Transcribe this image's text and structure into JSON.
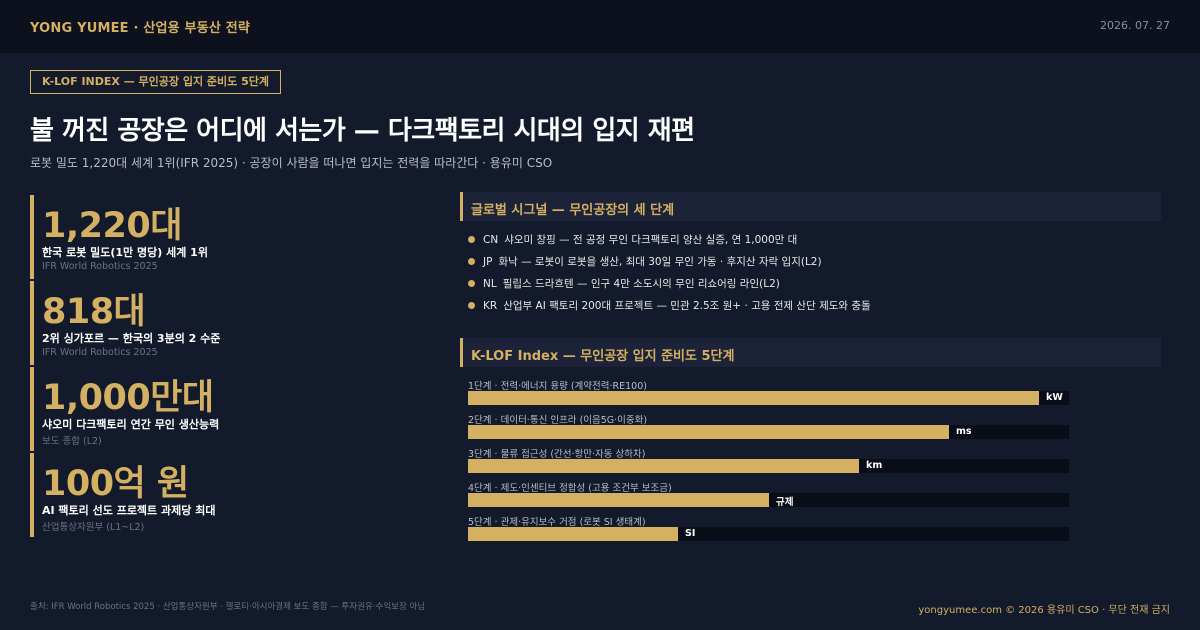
{
  "header": {
    "brand": "YONG YUMEE  ·  산업용 부동산 전략",
    "date": "2026. 07. 27"
  },
  "tag": "K-LOF INDEX — 무인공장 입지 준비도 5단계",
  "title": "불 꺼진 공장은 어디에 서는가 — 다크팩토리 시대의 입지 재편",
  "subtitle": "로봇 밀도 1,220대 세계 1위(IFR 2025) · 공장이 사람을 떠나면 입지는 전력을 따라간다 · 용유미 CSO",
  "stats": [
    {
      "value": "1,220대",
      "label": "한국 로봇 밀도(1만 명당) 세계 1위",
      "source": "IFR World Robotics 2025"
    },
    {
      "value": "818대",
      "label": "2위 싱가포르 — 한국의 3분의 2 수준",
      "source": "IFR World Robotics 2025"
    },
    {
      "value": "1,000만대",
      "label": "샤오미 다크팩토리 연간 무인 생산능력",
      "source": "보도 종합 (L2)"
    },
    {
      "value": "100억 원",
      "label": "AI 팩토리 선도 프로젝트 과제당 최대",
      "source": "산업통상자원부 (L1~L2)"
    }
  ],
  "signals_section": {
    "title": "글로벌 시그널 — 무인공장의 세 단계",
    "items": [
      {
        "code": "CN",
        "text": "샤오미 창핑 — 전 공정 무인 다크팩토리 양산 실증, 연 1,000만 대"
      },
      {
        "code": "JP",
        "text": "화낙 — 로봇이 로봇을 생산, 최대 30일 무인 가동 · 후지산 자락 입지(L2)"
      },
      {
        "code": "NL",
        "text": "필립스 드라흐텐 — 인구 4만 소도시의 무인 리쇼어링 라인(L2)"
      },
      {
        "code": "KR",
        "text": "산업부 AI 팩토리 200대 프로젝트 — 민관 2.5조 원+ · 고용 전제 산단 제도와 충돌"
      }
    ]
  },
  "index_section": {
    "title": "K-LOF Index — 무인공장 입지 준비도 5단계",
    "bars": [
      {
        "label": "1단계 · 전력·에너지 용량 (계약전력·RE100)",
        "unit": "kW",
        "fill_ratio": 0.95
      },
      {
        "label": "2단계 · 데이터·통신 인프라 (이음5G·이중화)",
        "unit": "ms",
        "fill_ratio": 0.8
      },
      {
        "label": "3단계 · 물류 접근성 (간선·항만·자동 상하차)",
        "unit": "km",
        "fill_ratio": 0.65
      },
      {
        "label": "4단계 · 제도·인센티브 정합성 (고용 조건부 보조금)",
        "unit": "규제",
        "fill_ratio": 0.5
      },
      {
        "label": "5단계 · 관제·유지보수 거점 (로봇 SI 생태계)",
        "unit": "SI",
        "fill_ratio": 0.35
      }
    ]
  },
  "footer": {
    "sources": "출처: IFR World Robotics 2025 · 산업통상자원부 · 헬로티·아시아경제 보도 종합 — 투자권유·수익보장 아님",
    "copyright": "yongyumee.com  ©  2026 용유미 CSO  ·  무단 전재 금지"
  },
  "colors": {
    "accent": "#d4b062",
    "background": "#131a2b",
    "topbar": "#0c111d",
    "track": "#090d17"
  }
}
